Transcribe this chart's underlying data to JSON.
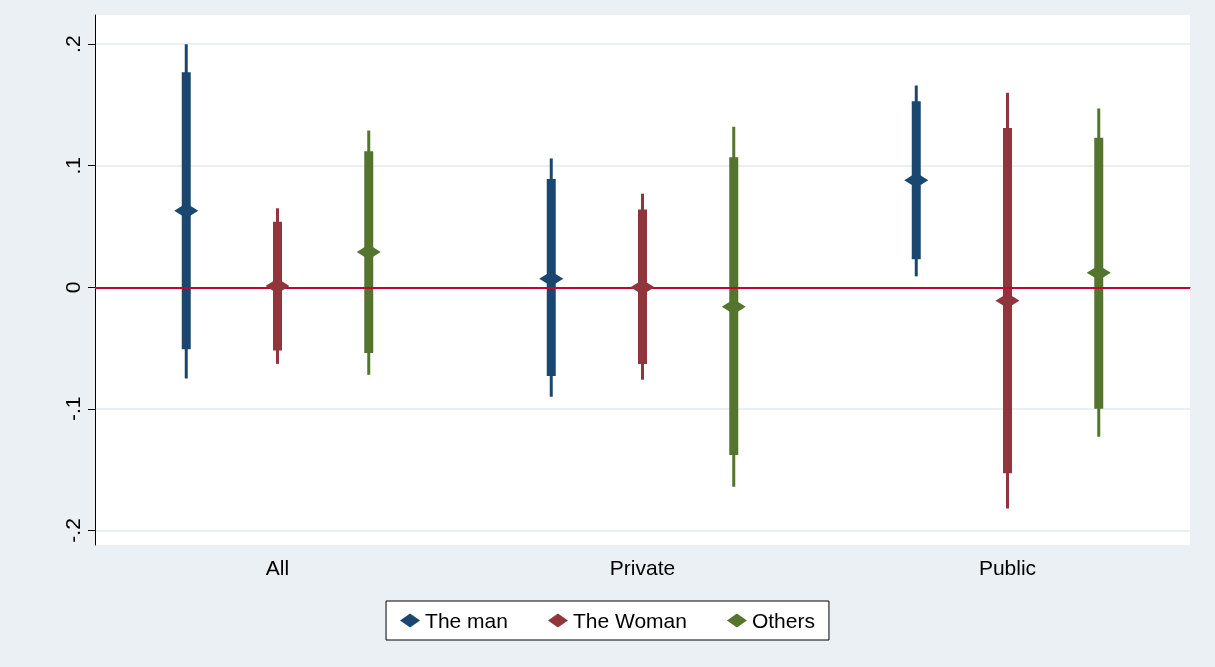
{
  "chart_data": {
    "type": "scatter",
    "categories": [
      "All",
      "Private",
      "Public"
    ],
    "series": [
      {
        "name": "The man",
        "color": "#1a476f",
        "values": [
          0.063,
          0.007,
          0.088
        ],
        "errors": [
          [
            -0.075,
            0.2
          ],
          [
            -0.09,
            0.106
          ],
          [
            0.009,
            0.166
          ]
        ]
      },
      {
        "name": "The Woman",
        "color": "#90353b",
        "values": [
          0.001,
          0,
          -0.011
        ],
        "errors": [
          [
            -0.063,
            0.065
          ],
          [
            -0.076,
            0.077
          ],
          [
            -0.182,
            0.16
          ]
        ]
      },
      {
        "name": "Others",
        "color": "#55752f",
        "values": [
          0.029,
          -0.016,
          0.012
        ],
        "errors": [
          [
            -0.072,
            0.129
          ],
          [
            -0.164,
            0.132
          ],
          [
            -0.123,
            0.147
          ]
        ]
      },
      {
        "type": "bar",
        "color": "#1a476f",
        "base": [
          -0.051,
          -0.073,
          0.023
        ],
        "values": [
          0.228,
          0.162,
          0.13
        ]
      },
      {
        "type": "bar",
        "color": "#90353b",
        "base": [
          -0.052,
          -0.063,
          -0.153
        ],
        "values": [
          0.106,
          0.127,
          0.284
        ]
      },
      {
        "type": "bar",
        "color": "#55752f",
        "base": [
          -0.054,
          -0.138,
          -0.1
        ],
        "values": [
          0.166,
          0.245,
          0.223
        ]
      }
    ],
    "ylim": [
      -0.212,
      0.224
    ],
    "yticks": [
      {
        "value": -0.2,
        "label": "-.2"
      },
      {
        "value": -0.1,
        "label": "-.1"
      },
      0,
      {
        "value": 0.1,
        "label": ".1"
      },
      {
        "value": 0.2,
        "label": ".2"
      }
    ],
    "ref_lines": [
      {
        "axis": "y",
        "value": 0,
        "color": "#c10534"
      }
    ],
    "grid": "y",
    "legend": "bottom",
    "marker": "diamond"
  }
}
